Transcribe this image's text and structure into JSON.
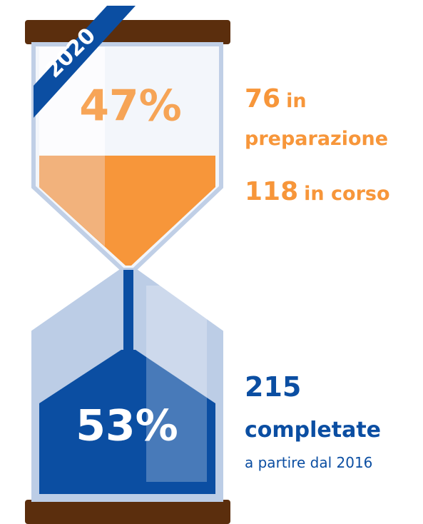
{
  "ribbon": "2020",
  "top": {
    "percent": "47%",
    "items": [
      {
        "number": "76",
        "label": "in",
        "label2": "preparazione"
      },
      {
        "number": "118",
        "label": "in corso"
      }
    ]
  },
  "bottom": {
    "percent": "53%",
    "number": "215",
    "label": "completate",
    "note": "a partire dal 2016"
  }
}
